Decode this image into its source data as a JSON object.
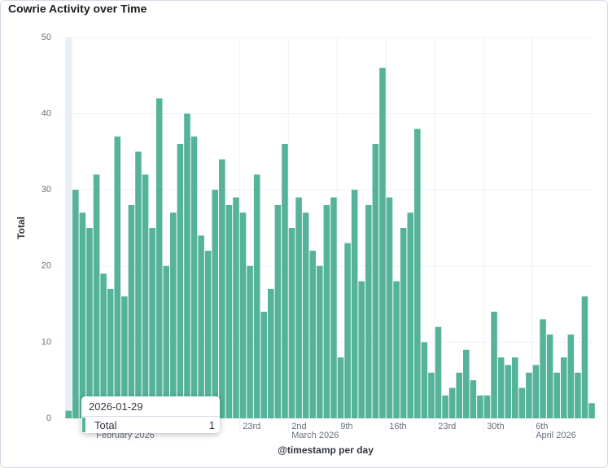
{
  "chart_data": {
    "type": "bar",
    "title": "Cowrie Activity over Time",
    "xlabel": "@timestamp per day",
    "ylabel": "Total",
    "categories": [
      "2026-01-29",
      "2026-01-30",
      "2026-01-31",
      "2026-02-01",
      "2026-02-02",
      "2026-02-03",
      "2026-02-04",
      "2026-02-05",
      "2026-02-06",
      "2026-02-07",
      "2026-02-08",
      "2026-02-09",
      "2026-02-10",
      "2026-02-11",
      "2026-02-12",
      "2026-02-13",
      "2026-02-14",
      "2026-02-15",
      "2026-02-16",
      "2026-02-17",
      "2026-02-18",
      "2026-02-19",
      "2026-02-20",
      "2026-02-21",
      "2026-02-22",
      "2026-02-23",
      "2026-02-24",
      "2026-02-25",
      "2026-02-26",
      "2026-02-27",
      "2026-02-28",
      "2026-03-01",
      "2026-03-02",
      "2026-03-03",
      "2026-03-04",
      "2026-03-05",
      "2026-03-06",
      "2026-03-07",
      "2026-03-08",
      "2026-03-09",
      "2026-03-10",
      "2026-03-11",
      "2026-03-12",
      "2026-03-13",
      "2026-03-14",
      "2026-03-15",
      "2026-03-16",
      "2026-03-17",
      "2026-03-18",
      "2026-03-19",
      "2026-03-20",
      "2026-03-21",
      "2026-03-22",
      "2026-03-23",
      "2026-03-24",
      "2026-03-25",
      "2026-03-26",
      "2026-03-27",
      "2026-03-28",
      "2026-03-29",
      "2026-03-30",
      "2026-03-31",
      "2026-04-01",
      "2026-04-02",
      "2026-04-03",
      "2026-04-04",
      "2026-04-05",
      "2026-04-06",
      "2026-04-07",
      "2026-04-08",
      "2026-04-09",
      "2026-04-10",
      "2026-04-11",
      "2026-04-12",
      "2026-04-13",
      "2026-04-14"
    ],
    "series": [
      {
        "name": "Total",
        "color": "#54b399",
        "values": [
          1,
          30,
          27,
          25,
          32,
          19,
          17,
          37,
          16,
          28,
          35,
          32,
          25,
          42,
          20,
          27,
          36,
          40,
          37,
          24,
          22,
          30,
          34,
          28,
          29,
          27,
          20,
          32,
          14,
          17,
          28,
          36,
          25,
          29,
          27,
          22,
          20,
          28,
          29,
          8,
          23,
          30,
          18,
          28,
          36,
          46,
          29,
          18,
          25,
          27,
          38,
          10,
          6,
          12,
          3,
          4,
          6,
          9,
          5,
          3,
          3,
          14,
          8,
          7,
          8,
          4,
          6,
          7,
          13,
          11,
          6,
          8,
          11,
          6,
          16,
          2
        ]
      }
    ],
    "ylim": [
      0,
      50
    ],
    "yticks": [
      0,
      10,
      20,
      30,
      40,
      50
    ],
    "grid": true,
    "xticks": [
      {
        "value": "2026-02-23",
        "label": "23rd"
      },
      {
        "value": "2026-03-02",
        "label": "2nd"
      },
      {
        "value": "2026-03-09",
        "label": "9th"
      },
      {
        "value": "2026-03-16",
        "label": "16th"
      },
      {
        "value": "2026-03-23",
        "label": "23rd"
      },
      {
        "value": "2026-03-30",
        "label": "30th"
      },
      {
        "value": "2026-04-06",
        "label": "6th"
      }
    ],
    "month_labels": [
      {
        "value": "2026-02-02",
        "label": "February 2026"
      },
      {
        "value": "2026-03-02",
        "label": "March 2026"
      },
      {
        "value": "2026-04-06",
        "label": "April 2026"
      }
    ],
    "tooltip_index": 0
  }
}
